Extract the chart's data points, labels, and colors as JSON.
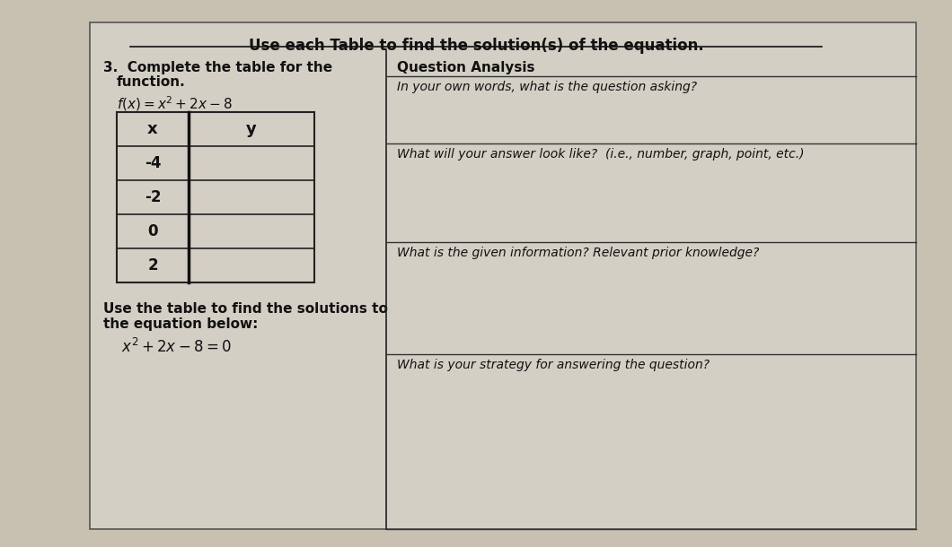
{
  "title": "Use each Table to find the solution(s) of the equation.",
  "section_num": "3.",
  "section_header": "Complete the table for the\n    function.",
  "function_label": "f(x) = x² + 2x − 8",
  "table_x_header": "x",
  "table_y_header": "y",
  "table_x_values": [
    "-4",
    "-2",
    "0",
    "2"
  ],
  "bottom_instruction": "Use the table to find the solutions to\nthe equation below:",
  "bottom_equation": "x² + 2x − 8 = 0",
  "qa_header": "Question Analysis",
  "qa_q1": "In your own words, what is the question asking?",
  "qa_q2": "What will your answer look like?  (i.e., number, graph, point, etc.)",
  "qa_q3": "What is the given information? Relevant prior knowledge?",
  "qa_q4": "What is your strategy for answering the question?",
  "bg_color": "#c8c0b0",
  "paper_color": "#d4cfc5",
  "table_bg": "#d4cfc5",
  "border_color": "#222222",
  "text_color": "#111111",
  "title_underline": true
}
